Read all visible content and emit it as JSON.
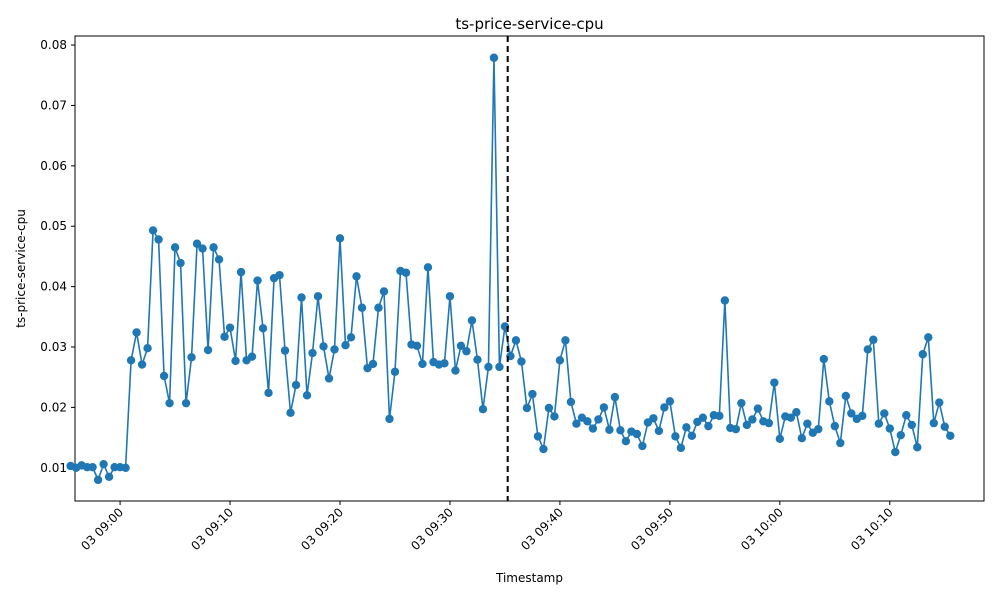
{
  "chart_data": {
    "type": "line",
    "title": "ts-price-service-cpu",
    "xlabel": "Timestamp",
    "ylabel": "ts-price-service-cpu",
    "ylim": [
      0.0045,
      0.0815
    ],
    "xlim": [
      "03 08:55:54",
      "03 10:18:34"
    ],
    "grid": false,
    "marker": "circle",
    "color": "#1f77b4",
    "vline": {
      "x": "03 09:35:15",
      "style": "dashed",
      "color": "#000000"
    },
    "x_ticks": [
      {
        "label": "03 09:00",
        "x": "03 09:00:00"
      },
      {
        "label": "03 09:10",
        "x": "03 09:10:00"
      },
      {
        "label": "03 09:20",
        "x": "03 09:20:00"
      },
      {
        "label": "03 09:30",
        "x": "03 09:30:00"
      },
      {
        "label": "03 09:40",
        "x": "03 09:40:00"
      },
      {
        "label": "03 09:50",
        "x": "03 09:50:00"
      },
      {
        "label": "03 10:00",
        "x": "03 10:00:00"
      },
      {
        "label": "03 10:10",
        "x": "03 10:10:00"
      }
    ],
    "y_ticks": [
      "0.01",
      "0.02",
      "0.03",
      "0.04",
      "0.05",
      "0.06",
      "0.07",
      "0.08"
    ],
    "y_tick_values": [
      0.01,
      0.02,
      0.03,
      0.04,
      0.05,
      0.06,
      0.07,
      0.08
    ],
    "series": [
      {
        "start": "03 08:55:30",
        "interval_seconds": 30,
        "values": [
          0.0103,
          0.01,
          0.0104,
          0.0101,
          0.0101,
          0.008,
          0.0106,
          0.0085,
          0.0101,
          0.0101,
          0.01,
          0.0278,
          0.0324,
          0.0271,
          0.0298,
          0.0493,
          0.0478,
          0.0252,
          0.0207,
          0.0465,
          0.0439,
          0.0207,
          0.0283,
          0.0471,
          0.0463,
          0.0295,
          0.0465,
          0.0445,
          0.0317,
          0.0332,
          0.0277,
          0.0424,
          0.0278,
          0.0284,
          0.041,
          0.0331,
          0.0224,
          0.0414,
          0.0419,
          0.0294,
          0.0191,
          0.0237,
          0.0382,
          0.022,
          0.029,
          0.0384,
          0.0301,
          0.0248,
          0.0296,
          0.048,
          0.0303,
          0.0316,
          0.0417,
          0.0365,
          0.0265,
          0.0272,
          0.0365,
          0.0392,
          0.0181,
          0.0259,
          0.0426,
          0.0423,
          0.0304,
          0.0302,
          0.0272,
          0.0432,
          0.0275,
          0.0271,
          0.0273,
          0.0384,
          0.0261,
          0.0302,
          0.0293,
          0.0344,
          0.0279,
          0.0197,
          0.0267,
          0.0779,
          0.0267,
          0.0334,
          0.0285,
          0.0311,
          0.0276,
          0.0199,
          0.0222,
          0.0152,
          0.0131,
          0.0199,
          0.0185,
          0.0278,
          0.0311,
          0.0209,
          0.0173,
          0.0183,
          0.0177,
          0.0165,
          0.018,
          0.02,
          0.0163,
          0.0217,
          0.0162,
          0.0144,
          0.016,
          0.0156,
          0.0136,
          0.0175,
          0.0182,
          0.0161,
          0.02,
          0.021,
          0.0152,
          0.0133,
          0.0167,
          0.0153,
          0.0176,
          0.0183,
          0.0169,
          0.0187,
          0.0186,
          0.0377,
          0.0166,
          0.0164,
          0.0207,
          0.0171,
          0.018,
          0.0198,
          0.0177,
          0.0174,
          0.0241,
          0.0148,
          0.0185,
          0.0183,
          0.0192,
          0.0149,
          0.0173,
          0.0158,
          0.0164,
          0.028,
          0.021,
          0.0169,
          0.0141,
          0.0219,
          0.019,
          0.0181,
          0.0186,
          0.0296,
          0.0312,
          0.0173,
          0.019,
          0.0165,
          0.0126,
          0.0154,
          0.0187,
          0.0171,
          0.0134,
          0.0288,
          0.0316,
          0.0174,
          0.0208,
          0.0168,
          0.0153
        ]
      }
    ]
  }
}
